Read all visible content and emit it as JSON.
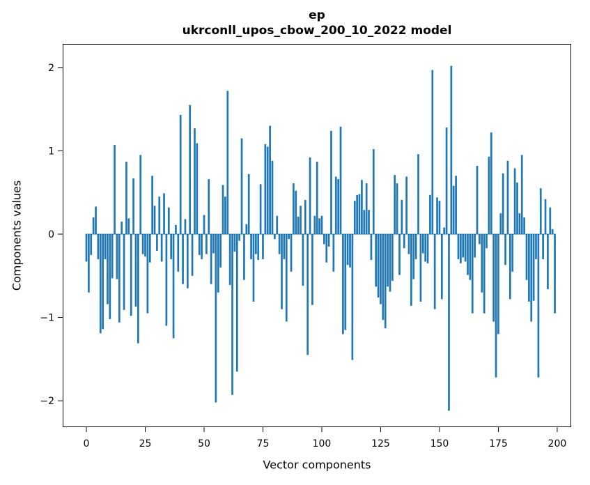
{
  "figure": {
    "title_line1": "ep",
    "title_line2": "ukrconll_upos_cbow_200_10_2022 model"
  },
  "chart_data": {
    "type": "bar",
    "title": "ep\nukrconll_upos_cbow_200_10_2022 model",
    "xlabel": "Vector components",
    "ylabel": "Components values",
    "bar_color": "#1f77b4",
    "grid": false,
    "legend": null,
    "x_start": 0,
    "n_bars": 200,
    "xticks": [
      0,
      25,
      50,
      75,
      100,
      125,
      150,
      175,
      200
    ],
    "yticks": [
      -2,
      -1,
      0,
      1,
      2
    ],
    "xlim": [
      -10.1,
      205.9
    ],
    "ylim": [
      -2.32,
      2.28
    ],
    "values": [
      -0.33,
      -0.7,
      -0.25,
      0.2,
      0.33,
      -0.3,
      -1.19,
      -1.14,
      -0.3,
      -0.84,
      -1.02,
      -0.53,
      1.07,
      -0.54,
      -1.06,
      0.15,
      -0.91,
      0.87,
      0.19,
      -0.98,
      0.67,
      -0.87,
      -1.31,
      0.95,
      -0.24,
      -0.27,
      -0.95,
      -0.34,
      0.7,
      0.34,
      -0.2,
      0.45,
      -0.33,
      0.49,
      -1.1,
      0.32,
      -0.3,
      -1.25,
      0.11,
      -0.45,
      1.43,
      -0.6,
      0.18,
      -0.65,
      1.55,
      -0.5,
      1.27,
      1.09,
      -0.25,
      -0.3,
      0.23,
      -0.24,
      0.66,
      -0.6,
      -0.23,
      -2.02,
      -0.7,
      -0.4,
      0.59,
      0.45,
      1.72,
      -0.61,
      -1.93,
      -0.21,
      -1.65,
      -0.08,
      1.15,
      -0.55,
      0.12,
      0.72,
      -0.3,
      -0.81,
      -0.24,
      -0.31,
      0.6,
      -0.3,
      1.08,
      1.05,
      1.3,
      0.88,
      -0.06,
      0.22,
      -0.24,
      -0.9,
      -0.3,
      -1.05,
      -0.06,
      -0.45,
      0.61,
      0.52,
      0.21,
      0.34,
      -0.62,
      0.41,
      -1.45,
      0.92,
      -0.85,
      0.22,
      0.87,
      0.19,
      0.22,
      -0.12,
      -0.34,
      -0.15,
      1.24,
      -0.45,
      0.69,
      0.66,
      1.29,
      -1.2,
      -1.15,
      -0.37,
      -0.4,
      -1.51,
      0.4,
      0.47,
      0.48,
      0.65,
      0.29,
      0.61,
      0.29,
      -0.31,
      1.02,
      -0.63,
      -0.76,
      -0.84,
      -1.03,
      -1.13,
      -0.63,
      -0.69,
      -0.56,
      0.71,
      0.61,
      -0.49,
      0.41,
      -0.17,
      0.69,
      -0.24,
      -0.86,
      -0.54,
      -0.3,
      0.96,
      -0.81,
      -0.23,
      -0.33,
      -0.35,
      0.47,
      1.97,
      -0.9,
      0.44,
      0.4,
      -0.78,
      0.08,
      1.28,
      -2.12,
      2.02,
      0.58,
      0.7,
      -0.3,
      -0.35,
      -0.28,
      -0.33,
      -0.49,
      -0.55,
      -0.95,
      -0.28,
      0.82,
      -0.12,
      -0.7,
      -0.95,
      -0.17,
      0.93,
      1.22,
      -1.05,
      -1.72,
      -1.2,
      0.25,
      0.73,
      -0.37,
      0.88,
      -0.78,
      -0.45,
      0.79,
      0.62,
      0.25,
      0.95,
      0.2,
      -0.55,
      -0.81,
      -1.05,
      -0.8,
      -0.3,
      -1.72,
      0.55,
      -0.3,
      0.42,
      -0.66,
      0.32,
      0.06,
      -0.95
    ]
  }
}
